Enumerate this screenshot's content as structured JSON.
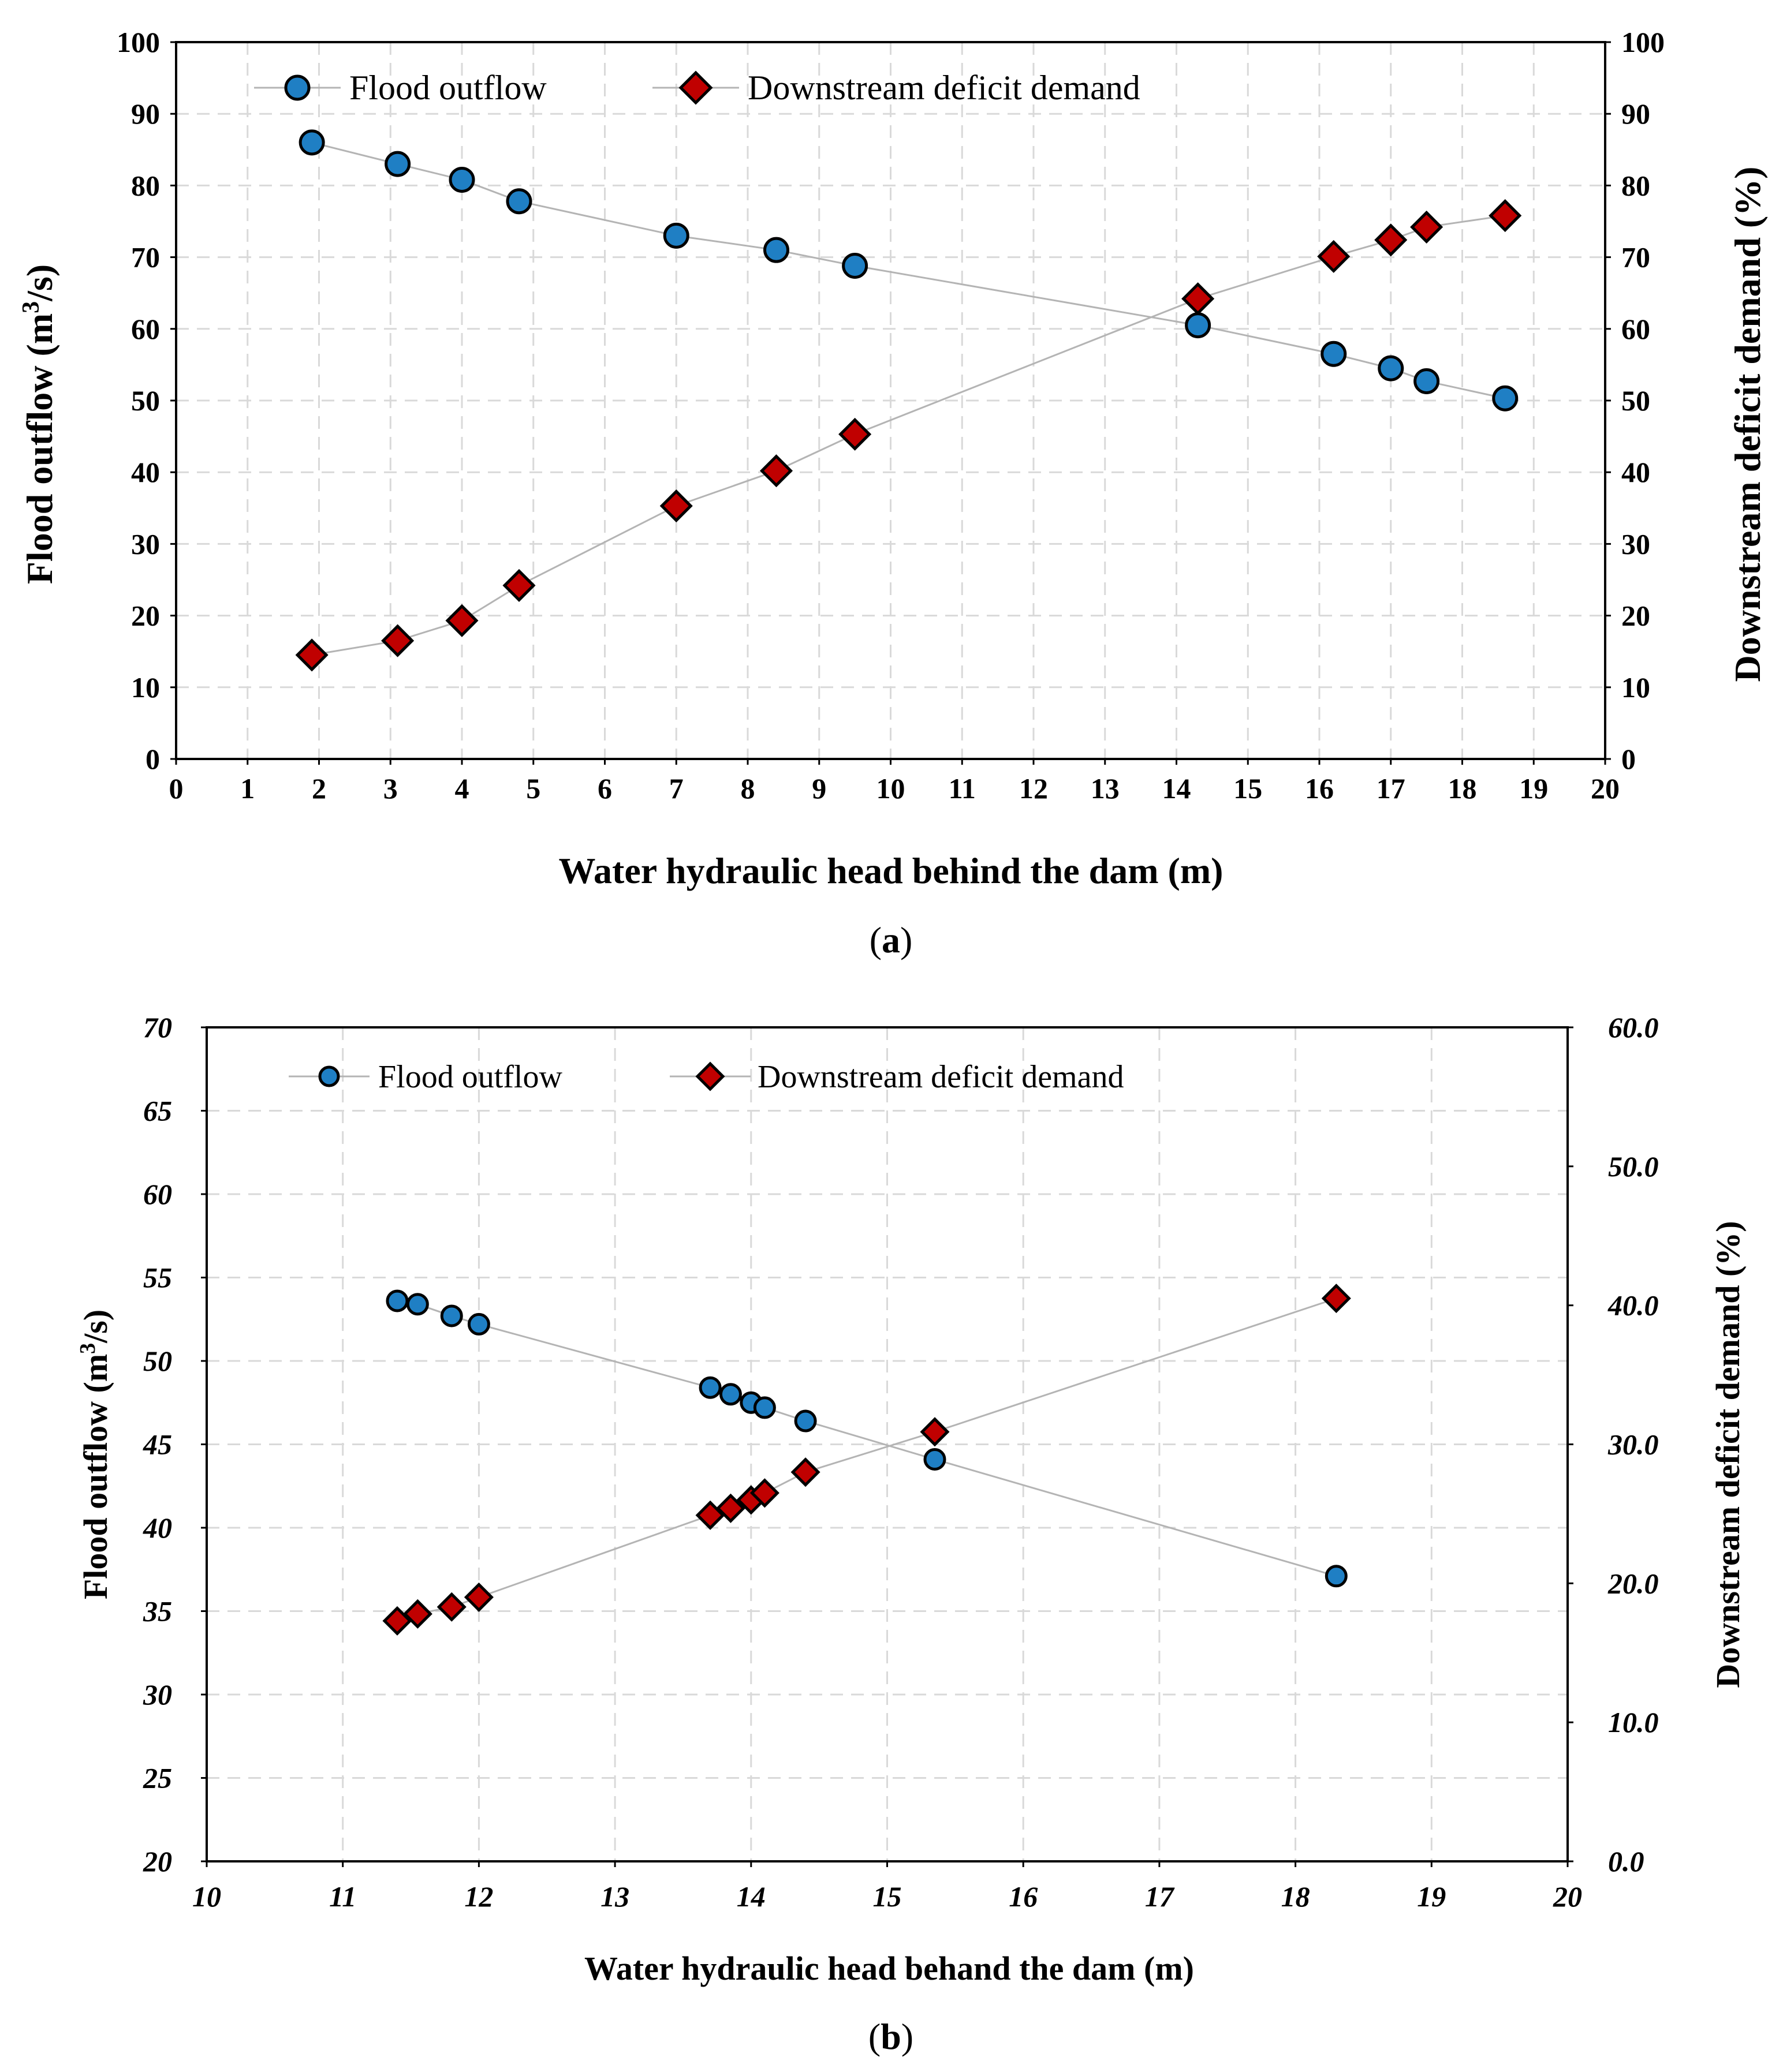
{
  "colors": {
    "flood_marker": "#1f7fc4",
    "deficit_marker": "#c00000",
    "marker_stroke": "#000000",
    "line": "#b4b4b4",
    "grid": "#d9d9d9"
  },
  "chart_data": [
    {
      "type": "line",
      "panel_label": {
        "open": "(",
        "letter": "a",
        "close": ")"
      },
      "xlabel": "Water hydraulic head behind the dam (m)",
      "ylabel": {
        "prefix": "Flood outflow (m",
        "sup": "3",
        "suffix": "/s)"
      },
      "y2label": "Downstream deficit demand (%)",
      "xlim": [
        0,
        20
      ],
      "ylim": [
        0,
        100
      ],
      "y2lim": [
        0,
        100
      ],
      "x_ticks": [
        "0",
        "1",
        "2",
        "3",
        "4",
        "5",
        "6",
        "7",
        "8",
        "9",
        "10",
        "11",
        "12",
        "13",
        "14",
        "15",
        "16",
        "17",
        "18",
        "19",
        "20"
      ],
      "y_ticks": [
        "0",
        "10",
        "20",
        "30",
        "40",
        "50",
        "60",
        "70",
        "80",
        "90",
        "100"
      ],
      "y2_ticks": [
        "0",
        "10",
        "20",
        "30",
        "40",
        "50",
        "60",
        "70",
        "80",
        "90",
        "100"
      ],
      "grid": true,
      "legend_position": "top",
      "series": [
        {
          "name": "Flood outflow",
          "axis": "left",
          "marker": "circle",
          "x": [
            1.9,
            3.1,
            4.0,
            4.8,
            7.0,
            8.4,
            9.5,
            14.3,
            16.2,
            17.0,
            17.5,
            18.6
          ],
          "y": [
            86,
            83,
            80.8,
            77.8,
            73,
            71,
            68.8,
            60.5,
            56.5,
            54.5,
            52.7,
            50.3
          ]
        },
        {
          "name": "Downstream deficit demand",
          "axis": "right",
          "marker": "diamond",
          "x": [
            1.9,
            3.1,
            4.0,
            4.8,
            7.0,
            8.4,
            9.5,
            14.3,
            16.2,
            17.0,
            17.5,
            18.6
          ],
          "y": [
            14.5,
            16.5,
            19.3,
            24.2,
            35.3,
            40.2,
            45.3,
            64.2,
            70.1,
            72.4,
            74.2,
            75.8
          ]
        }
      ]
    },
    {
      "type": "line",
      "panel_label": {
        "open": "(",
        "letter": "b",
        "close": ")"
      },
      "xlabel": "Water hydraulic  head behand the dam (m)",
      "ylabel": {
        "prefix": "Flood outflow (m",
        "sup": "3",
        "suffix": "/s)"
      },
      "y2label": "Downstream deficit demand (%)",
      "xlim": [
        10,
        20
      ],
      "ylim": [
        20,
        70
      ],
      "y2lim": [
        0,
        60
      ],
      "x_ticks": [
        "10",
        "11",
        "12",
        "13",
        "14",
        "15",
        "16",
        "17",
        "18",
        "19",
        "20"
      ],
      "y_ticks": [
        "20",
        "25",
        "30",
        "35",
        "40",
        "45",
        "50",
        "55",
        "60",
        "65",
        "70"
      ],
      "y2_ticks": [
        "0.0",
        "10.0",
        "20.0",
        "30.0",
        "40.0",
        "50.0",
        "60.0"
      ],
      "grid": true,
      "legend_position": "top",
      "series": [
        {
          "name": "Flood outflow",
          "axis": "left",
          "marker": "circle",
          "x": [
            11.4,
            11.55,
            11.8,
            12.0,
            13.7,
            13.85,
            14.0,
            14.1,
            14.4,
            15.35,
            18.3
          ],
          "y": [
            53.6,
            53.4,
            52.7,
            52.2,
            48.4,
            48.0,
            47.5,
            47.2,
            46.4,
            44.1,
            37.1
          ]
        },
        {
          "name": "Downstream deficit demand",
          "axis": "right",
          "marker": "diamond",
          "x": [
            11.4,
            11.55,
            11.8,
            12.0,
            13.7,
            13.85,
            14.0,
            14.1,
            14.4,
            15.35,
            18.3
          ],
          "y": [
            17.3,
            17.8,
            18.3,
            19.0,
            24.9,
            25.4,
            26.0,
            26.5,
            28.0,
            30.9,
            40.5
          ]
        }
      ]
    }
  ]
}
